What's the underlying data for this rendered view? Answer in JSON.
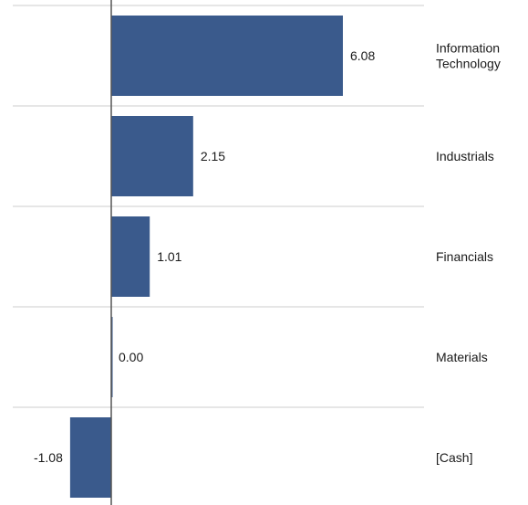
{
  "chart_data": {
    "type": "bar",
    "orientation": "horizontal",
    "categories": [
      [
        "Information",
        "Technology"
      ],
      [
        "Industrials"
      ],
      [
        "Financials"
      ],
      [
        "Materials"
      ],
      [
        "[Cash]"
      ]
    ],
    "values": [
      6.08,
      2.15,
      1.01,
      0.0,
      -1.08
    ],
    "value_labels": [
      "6.08",
      "2.15",
      "1.01",
      "0.00",
      "-1.08"
    ],
    "title": "",
    "xlabel": "",
    "ylabel": "",
    "xlim": [
      -2.7,
      8.2
    ],
    "grid": true,
    "legend": "none",
    "colors": {
      "bar": "#3a5a8c",
      "axis": "#555555",
      "grid": "#cccccc",
      "text": "#1a1a1a"
    }
  }
}
